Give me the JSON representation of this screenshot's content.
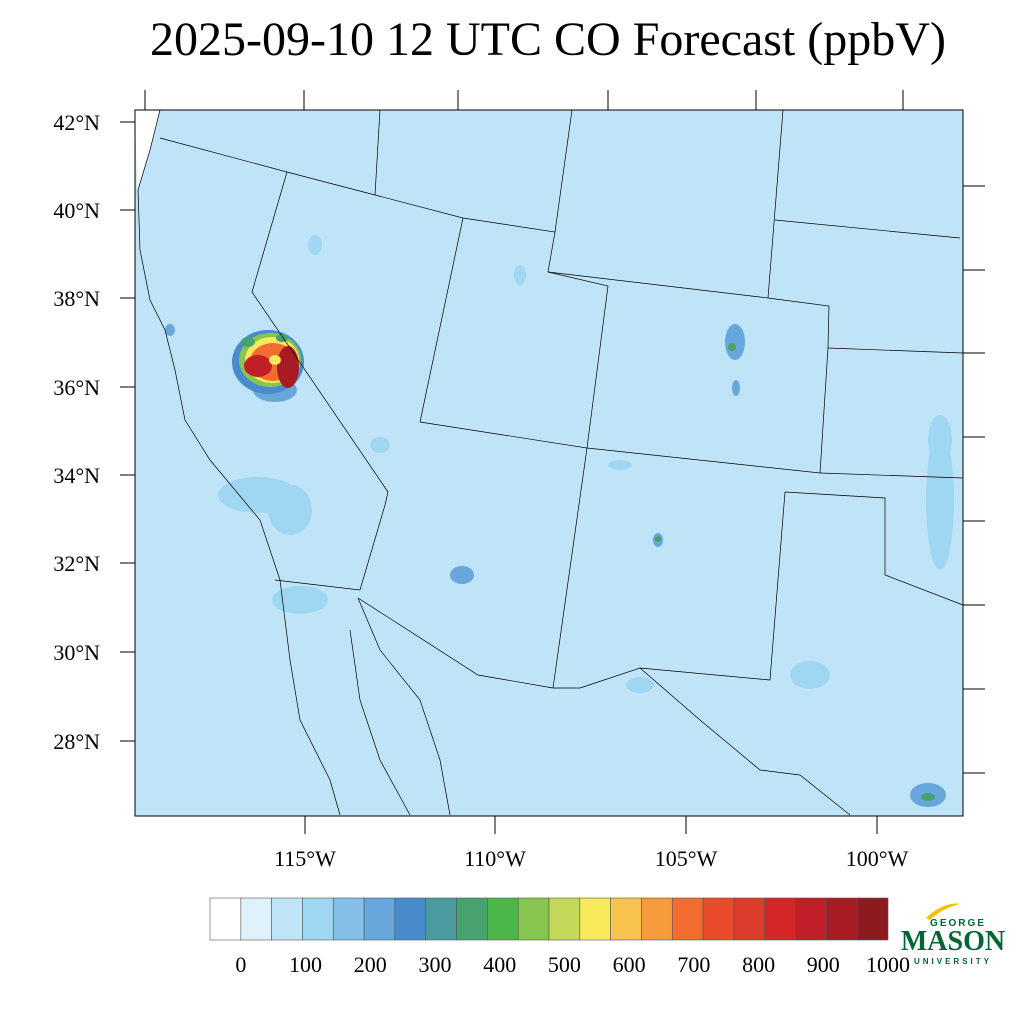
{
  "title": "2025-09-10 12 UTC CO Forecast (ppbV)",
  "lat_labels": [
    "42°N",
    "40°N",
    "38°N",
    "36°N",
    "34°N",
    "32°N",
    "30°N",
    "28°N"
  ],
  "lon_labels": [
    "115°W",
    "110°W",
    "105°W",
    "100°W"
  ],
  "colorbar": {
    "tick_labels": [
      "0",
      "100",
      "200",
      "300",
      "400",
      "500",
      "600",
      "700",
      "800",
      "900",
      "1000"
    ],
    "colors": [
      "#ffffff",
      "#dff1fb",
      "#c0e4f7",
      "#9fd6f2",
      "#85bfe5",
      "#68a7dc",
      "#4a8bcb",
      "#4a9aa0",
      "#48a26f",
      "#4cb748",
      "#86c550",
      "#c4d85a",
      "#f7e95a",
      "#f8c24d",
      "#f69a3b",
      "#f26b2f",
      "#ea4b2b",
      "#dd3b2b",
      "#d42529",
      "#c01f27",
      "#a91b23",
      "#8c1a1e"
    ]
  },
  "logo": {
    "top": "GEORGE",
    "middle": "MASON",
    "bottom": "UNIVERSITY"
  },
  "colors": {
    "background": "#c0e4f7",
    "hotspot": "#c01f27",
    "border": "#000000"
  }
}
